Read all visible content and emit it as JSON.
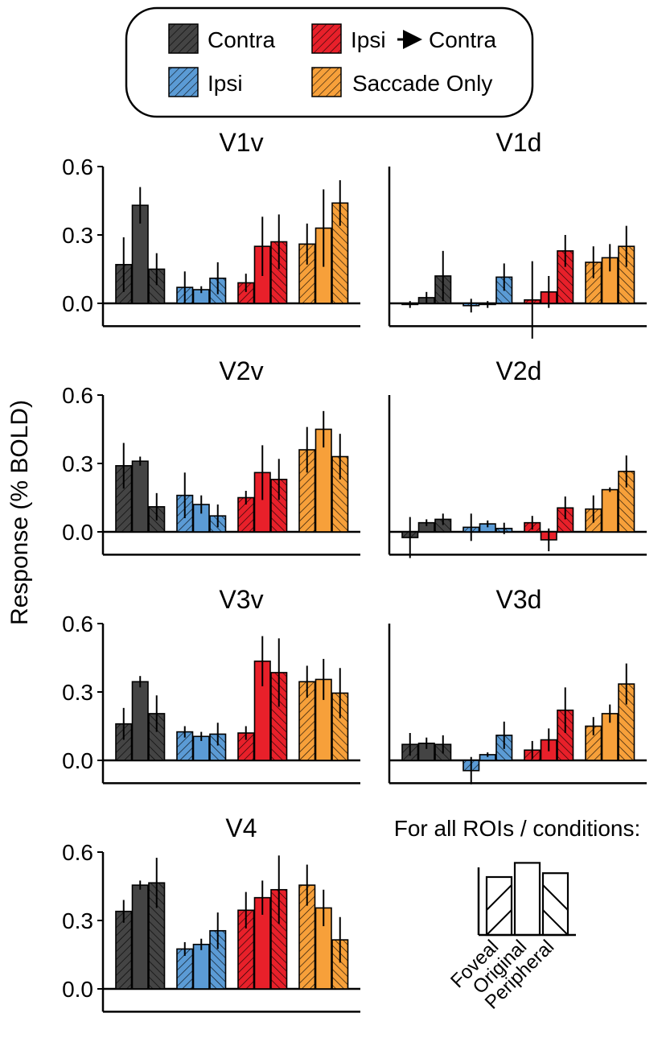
{
  "ylabel": "Response (% BOLD)",
  "legend": {
    "items": [
      {
        "label": "Contra",
        "color_key": "contra"
      },
      {
        "label": "Ipsi",
        "color_key": "ipsi"
      },
      {
        "label": "Ipsi",
        "label_suffix": "Contra",
        "color_key": "ipsi_contra"
      },
      {
        "label": "Saccade Only",
        "color_key": "saccade"
      }
    ]
  },
  "colors": {
    "contra": "#444444",
    "ipsi": "#5b9bd5",
    "ipsi_contra": "#e8202a",
    "saccade": "#f7a03a",
    "axis": "#000000"
  },
  "key_panel": {
    "title": "For all ROIs / conditions:",
    "labels": [
      "Foveal",
      "Original",
      "Peripheral"
    ],
    "values": [
      0.45,
      0.56,
      0.48
    ]
  },
  "chart_data": {
    "type": "bar",
    "ylim": [
      -0.1,
      0.6
    ],
    "yticks": [
      "0.0",
      "0.3",
      "0.6"
    ],
    "groups": [
      "Contra",
      "Ipsi",
      "Ipsi→Contra",
      "Saccade Only"
    ],
    "bars_per_group": [
      "Foveal",
      "Original",
      "Peripheral"
    ],
    "panels": [
      {
        "title": "V1v",
        "values": [
          [
            0.17,
            0.43,
            0.15
          ],
          [
            0.07,
            0.06,
            0.11
          ],
          [
            0.09,
            0.25,
            0.27
          ],
          [
            0.26,
            0.33,
            0.44
          ]
        ],
        "errors": [
          [
            0.12,
            0.08,
            0.07
          ],
          [
            0.07,
            0.015,
            0.07
          ],
          [
            0.04,
            0.13,
            0.12
          ],
          [
            0.09,
            0.17,
            0.1
          ]
        ]
      },
      {
        "title": "V1d",
        "values": [
          [
            -0.005,
            0.025,
            0.12
          ],
          [
            -0.01,
            -0.005,
            0.115
          ],
          [
            0.015,
            0.05,
            0.23
          ],
          [
            0.18,
            0.2,
            0.25
          ]
        ],
        "errors": [
          [
            0.015,
            0.025,
            0.11
          ],
          [
            0.03,
            0.015,
            0.06
          ],
          [
            0.17,
            0.07,
            0.07
          ],
          [
            0.07,
            0.06,
            0.09
          ]
        ]
      },
      {
        "title": "V2v",
        "values": [
          [
            0.29,
            0.31,
            0.11
          ],
          [
            0.16,
            0.12,
            0.07
          ],
          [
            0.15,
            0.26,
            0.23
          ],
          [
            0.36,
            0.45,
            0.33
          ]
        ],
        "errors": [
          [
            0.1,
            0.02,
            0.06
          ],
          [
            0.1,
            0.04,
            0.05
          ],
          [
            0.03,
            0.12,
            0.09
          ],
          [
            0.1,
            0.08,
            0.1
          ]
        ]
      },
      {
        "title": "V2d",
        "values": [
          [
            -0.025,
            0.04,
            0.055
          ],
          [
            0.02,
            0.035,
            0.015
          ],
          [
            0.04,
            -0.035,
            0.105
          ],
          [
            0.1,
            0.185,
            0.265
          ]
        ],
        "errors": [
          [
            0.09,
            0.015,
            0.025
          ],
          [
            0.06,
            0.015,
            0.025
          ],
          [
            0.03,
            0.05,
            0.05
          ],
          [
            0.06,
            0.01,
            0.07
          ]
        ]
      },
      {
        "title": "V3v",
        "values": [
          [
            0.16,
            0.345,
            0.205
          ],
          [
            0.125,
            0.105,
            0.115
          ],
          [
            0.12,
            0.435,
            0.385
          ],
          [
            0.345,
            0.355,
            0.295
          ]
        ],
        "errors": [
          [
            0.07,
            0.025,
            0.08
          ],
          [
            0.025,
            0.02,
            0.05
          ],
          [
            0.03,
            0.11,
            0.15
          ],
          [
            0.07,
            0.09,
            0.11
          ]
        ]
      },
      {
        "title": "V3d",
        "values": [
          [
            0.07,
            0.075,
            0.07
          ],
          [
            -0.045,
            0.025,
            0.11
          ],
          [
            0.045,
            0.09,
            0.22
          ],
          [
            0.15,
            0.205,
            0.335
          ]
        ],
        "errors": [
          [
            0.05,
            0.025,
            0.04
          ],
          [
            0.06,
            0.01,
            0.06
          ],
          [
            0.04,
            0.05,
            0.1
          ],
          [
            0.04,
            0.04,
            0.09
          ]
        ]
      },
      {
        "title": "V4",
        "values": [
          [
            0.34,
            0.455,
            0.465
          ],
          [
            0.175,
            0.195,
            0.255
          ],
          [
            0.345,
            0.4,
            0.435
          ],
          [
            0.455,
            0.355,
            0.215
          ]
        ],
        "errors": [
          [
            0.05,
            0.02,
            0.11
          ],
          [
            0.03,
            0.025,
            0.08
          ],
          [
            0.08,
            0.075,
            0.15
          ],
          [
            0.09,
            0.08,
            0.1
          ]
        ]
      }
    ]
  }
}
